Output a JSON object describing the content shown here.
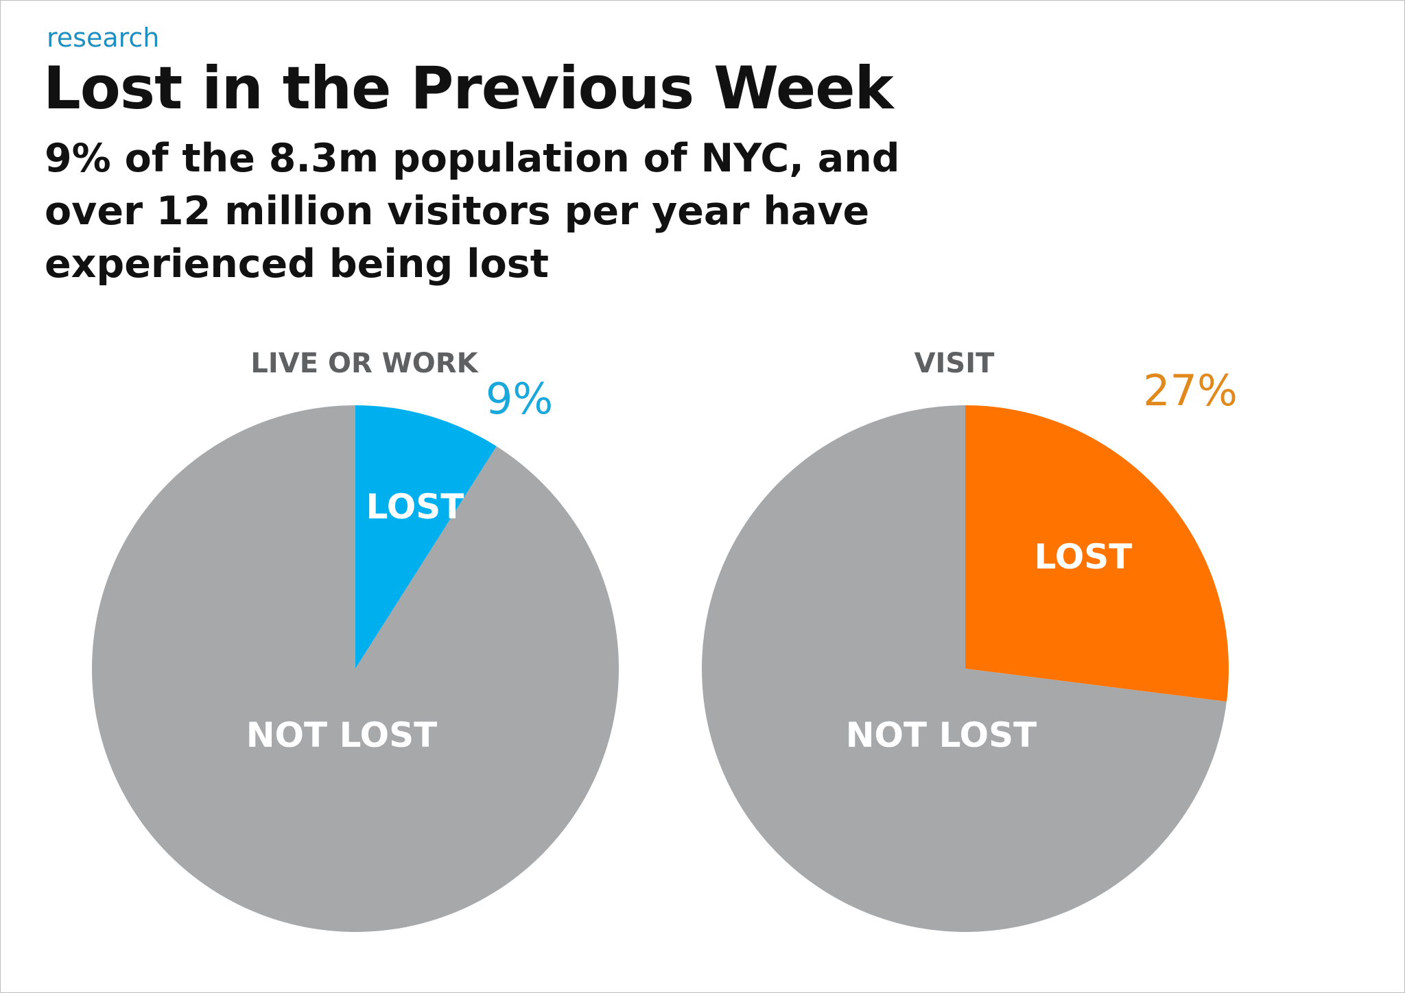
{
  "header": {
    "section": "research",
    "title": "Lost in the Previous Week",
    "subtitle": "9% of the 8.3m population of NYC, and over 12 million visitors per year have experienced being lost"
  },
  "colors": {
    "not_lost": "#a7a8aa",
    "live_or_work_lost": "#00b0ee",
    "visit_lost": "#ff7300",
    "heading": "#5f6062"
  },
  "chart_data": [
    {
      "type": "pie",
      "title": "LIVE OR WORK",
      "slices": [
        {
          "label": "LOST",
          "value": 9,
          "color": "#00b0ee"
        },
        {
          "label": "NOT LOST",
          "value": 91,
          "color": "#a7a8aa"
        }
      ],
      "highlight_label": "9%",
      "highlight_color": "#1aa8dc"
    },
    {
      "type": "pie",
      "title": "VISIT",
      "slices": [
        {
          "label": "LOST",
          "value": 27,
          "color": "#ff7300"
        },
        {
          "label": "NOT LOST",
          "value": 73,
          "color": "#a7a8aa"
        }
      ],
      "highlight_label": "27%",
      "highlight_color": "#e08a1e"
    }
  ]
}
